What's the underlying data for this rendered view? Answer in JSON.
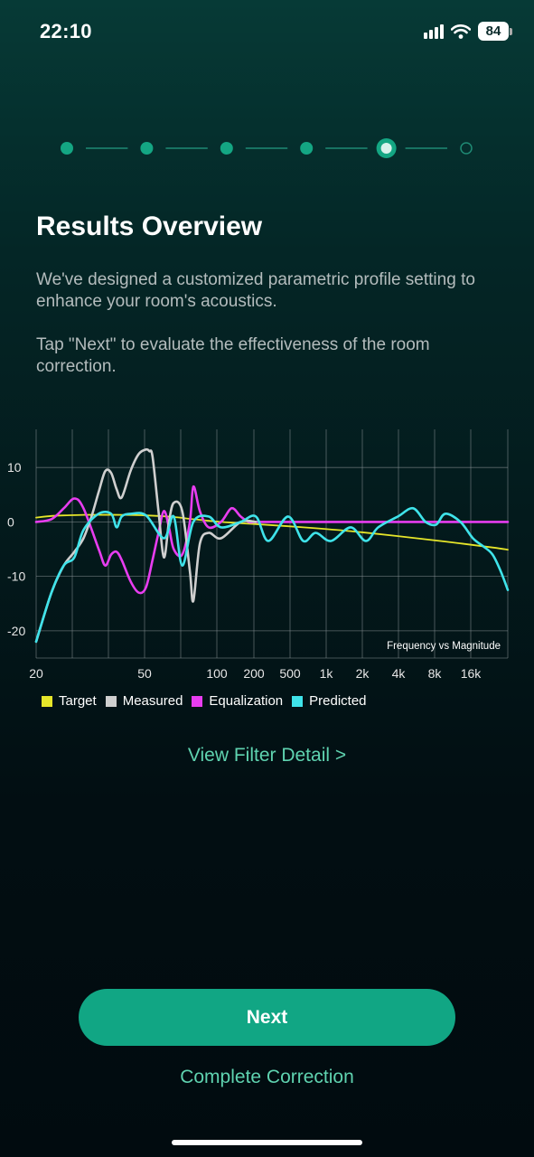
{
  "status_bar": {
    "time": "22:10",
    "battery": "84"
  },
  "stepper": {
    "total_steps": 6,
    "current_step": 5
  },
  "title": "Results Overview",
  "description": [
    "We've designed a customized parametric profile setting to enhance your room's acoustics.",
    "Tap \"Next\" to evaluate the effectiveness of the room correction."
  ],
  "colors": {
    "accent": "#11a684",
    "link": "#5fd3b0",
    "target": "#e6e62a",
    "measured": "#cfcfcf",
    "equalization": "#e83df0",
    "predicted": "#3fe3ea"
  },
  "chart_data": {
    "type": "line",
    "title": "Frequency vs Magnitude",
    "x_scale": "log",
    "x_ticks": [
      20,
      50,
      100,
      200,
      500,
      1000,
      2000,
      4000,
      8000,
      16000
    ],
    "x_tick_labels": [
      "20",
      "50",
      "100",
      "200",
      "500",
      "1k",
      "2k",
      "4k",
      "8k",
      "16k"
    ],
    "y_ticks": [
      10,
      0,
      -10,
      -20
    ],
    "y_tick_labels": [
      "10",
      "0",
      "-10",
      "-20"
    ],
    "ylim": [
      -25,
      17
    ],
    "grid": true,
    "legend": [
      "Target",
      "Measured",
      "Equalization",
      "Predicted"
    ],
    "series": [
      {
        "name": "Target",
        "x": [
          20,
          25,
          30,
          40,
          50,
          70,
          100,
          150,
          200,
          300,
          500,
          1000,
          2000,
          4000,
          8000,
          16000,
          20000
        ],
        "y": [
          0.8,
          1.1,
          1.2,
          1.3,
          1.3,
          1.3,
          1.2,
          0.9,
          0.5,
          0.0,
          -0.4,
          -1.0,
          -1.7,
          -2.6,
          -3.6,
          -4.7,
          -5.1
        ]
      },
      {
        "name": "Measured",
        "x": [
          20,
          25,
          30,
          35,
          40,
          45,
          50,
          55,
          60,
          65,
          70,
          80,
          90,
          100,
          105,
          110,
          120,
          130,
          140,
          150,
          170,
          190,
          200,
          220,
          250,
          300,
          400,
          500
        ],
        "y": [
          -22.0,
          -13.0,
          -8.0,
          -5.5,
          -3.0,
          1.0,
          5.5,
          9.3,
          9.0,
          6.0,
          4.5,
          9.5,
          12.5,
          13.3,
          13.0,
          12.0,
          2.0,
          -6.5,
          0.0,
          3.5,
          2.0,
          -9.0,
          -14.5,
          -4.0,
          -2.0,
          -3.0,
          0.0,
          0.0
        ]
      },
      {
        "name": "Equalization",
        "x": [
          20,
          25,
          30,
          35,
          40,
          50,
          55,
          60,
          65,
          70,
          80,
          90,
          100,
          110,
          120,
          130,
          140,
          150,
          170,
          190,
          200,
          220,
          250,
          300,
          350,
          400,
          450,
          500,
          700,
          1000,
          2000,
          4000,
          8000,
          16000,
          20000
        ],
        "y": [
          0.0,
          0.5,
          2.5,
          4.3,
          2.5,
          -5.0,
          -8.0,
          -6.0,
          -5.5,
          -7.0,
          -11.0,
          -13.0,
          -12.0,
          -7.0,
          -2.0,
          2.0,
          -1.0,
          -5.0,
          -6.0,
          0.0,
          6.5,
          2.0,
          -1.0,
          0.0,
          2.5,
          1.0,
          0.0,
          0.0,
          0.0,
          0.0,
          0.0,
          0.0,
          0.0,
          0.0,
          0.0
        ]
      },
      {
        "name": "Predicted",
        "x": [
          20,
          25,
          30,
          35,
          40,
          50,
          60,
          65,
          70,
          80,
          100,
          130,
          150,
          170,
          200,
          250,
          300,
          400,
          500,
          600,
          800,
          1000,
          1200,
          1500,
          2000,
          2500,
          3000,
          4000,
          5000,
          6000,
          7000,
          8000,
          10000,
          12000,
          14000,
          16000,
          18000,
          20000
        ],
        "y": [
          -22.0,
          -13.0,
          -8.0,
          -6.5,
          -1.5,
          1.5,
          1.5,
          -1.0,
          1.0,
          1.5,
          1.2,
          -3.0,
          1.0,
          -8.0,
          0.0,
          1.0,
          -1.0,
          0.0,
          1.0,
          -3.5,
          1.0,
          -3.5,
          -2.0,
          -3.5,
          -1.0,
          -3.5,
          -1.0,
          1.0,
          2.5,
          0.0,
          -0.5,
          1.5,
          0.0,
          -3.0,
          -4.5,
          -6.0,
          -9.0,
          -12.5
        ]
      }
    ]
  },
  "links": {
    "view_filter": "View Filter Detail >",
    "complete": "Complete Correction"
  },
  "buttons": {
    "next": "Next"
  }
}
